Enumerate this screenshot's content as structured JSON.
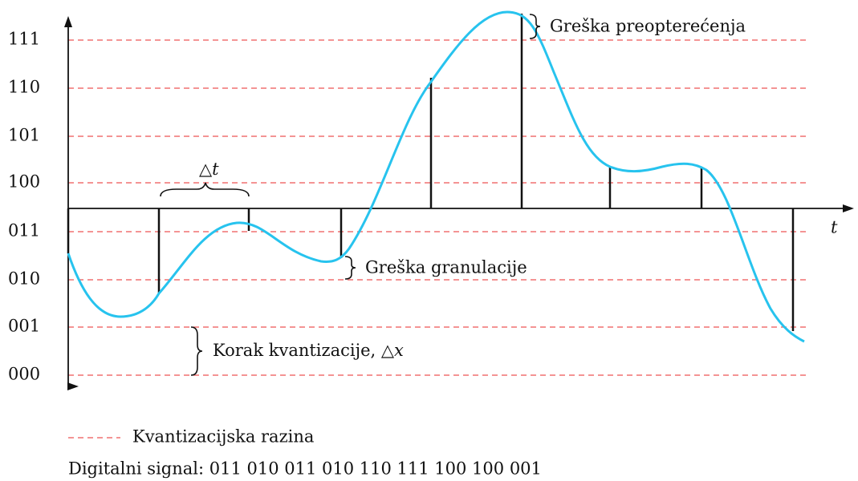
{
  "levels": [
    "111",
    "110",
    "101",
    "100",
    "011",
    "010",
    "001",
    "000"
  ],
  "axis_label": "t",
  "delta_t": {
    "symbol": "△",
    "var": "t"
  },
  "annotations": {
    "overload": "Greška preopterećenja",
    "granular": "Greška granulacije",
    "step": {
      "text": "Korak kvantizacije, △",
      "var": "x"
    }
  },
  "legend": "Kvantizacijska razina",
  "digital_signal": "Digitalni signal: 011 010 011 010 110 111 100 100 001"
}
